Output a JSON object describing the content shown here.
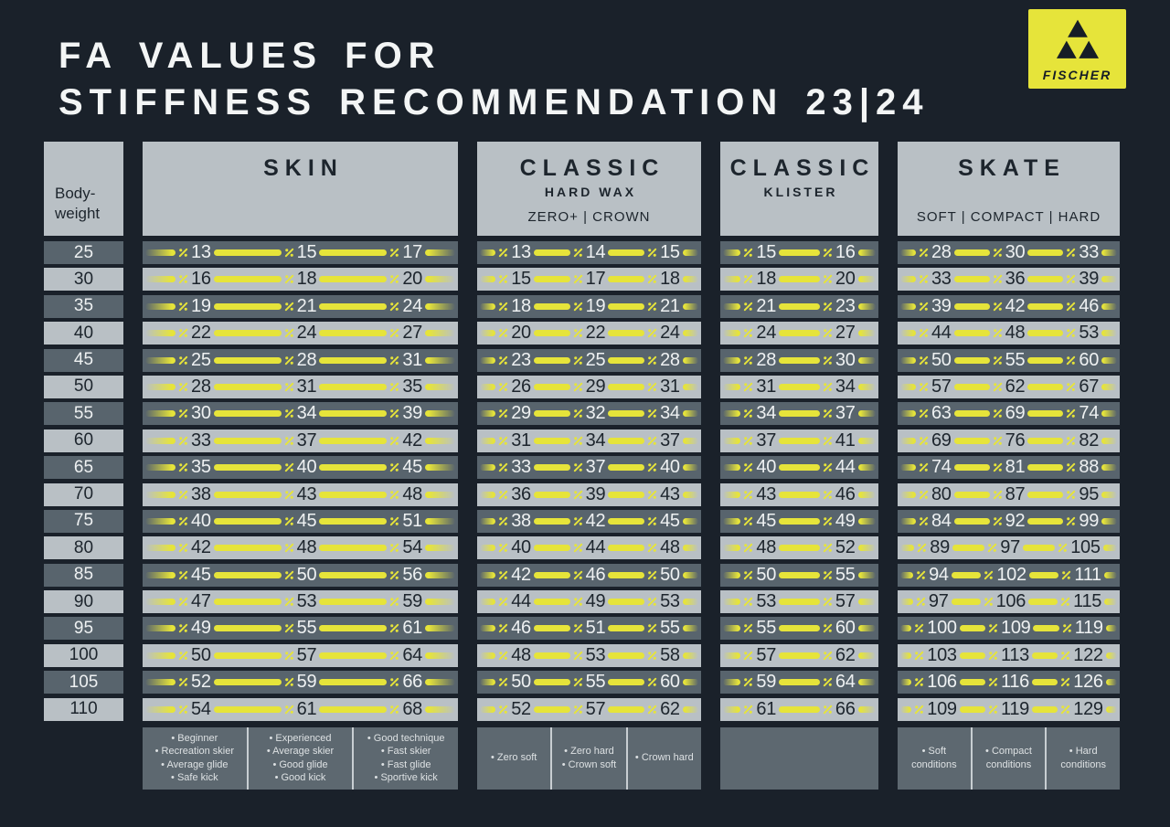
{
  "title": {
    "line1": "FA VALUES FOR",
    "line2": "STIFFNESS RECOMMENDATION 23|24"
  },
  "logo": {
    "brand": "FISCHER"
  },
  "table": {
    "bodyweight_header": [
      "Body-",
      "weight"
    ],
    "columns": [
      {
        "id": "skin",
        "title": "SKIN",
        "subtitle": "",
        "subtitle2": "",
        "footnotes": [
          [
            "Beginner",
            "Recreation skier",
            "Average glide",
            "Safe kick"
          ],
          [
            "Experienced",
            "Average skier",
            "Good glide",
            "Good kick"
          ],
          [
            "Good technique",
            "Fast skier",
            "Fast glide",
            "Sportive kick"
          ]
        ]
      },
      {
        "id": "classic-hard-wax",
        "title": "CLASSIC",
        "subtitle": "HARD WAX",
        "subtitle2": "ZERO+ | CROWN",
        "footnotes": [
          [
            "Zero soft"
          ],
          [
            "Zero hard",
            "Crown soft"
          ],
          [
            "Crown hard"
          ]
        ]
      },
      {
        "id": "classic-klister",
        "title": "CLASSIC",
        "subtitle": "KLISTER",
        "subtitle2": "",
        "footnotes": []
      },
      {
        "id": "skate",
        "title": "SKATE",
        "subtitle": "",
        "subtitle2": "SOFT | COMPACT | HARD",
        "footnotes": [
          [
            "Soft conditions"
          ],
          [
            "Compact conditions"
          ],
          [
            "Hard conditions"
          ]
        ]
      }
    ]
  },
  "chart_data": {
    "type": "table",
    "title": "FA VALUES FOR STIFFNESS RECOMMENDATION 23|24",
    "x_label": "Body-weight",
    "categories": [
      25,
      30,
      35,
      40,
      45,
      50,
      55,
      60,
      65,
      70,
      75,
      80,
      85,
      90,
      95,
      100,
      105,
      110
    ],
    "series": [
      {
        "name": "SKIN",
        "values": [
          [
            13,
            15,
            17
          ],
          [
            16,
            18,
            20
          ],
          [
            19,
            21,
            24
          ],
          [
            22,
            24,
            27
          ],
          [
            25,
            28,
            31
          ],
          [
            28,
            31,
            35
          ],
          [
            30,
            34,
            39
          ],
          [
            33,
            37,
            42
          ],
          [
            35,
            40,
            45
          ],
          [
            38,
            43,
            48
          ],
          [
            40,
            45,
            51
          ],
          [
            42,
            48,
            54
          ],
          [
            45,
            50,
            56
          ],
          [
            47,
            53,
            59
          ],
          [
            49,
            55,
            61
          ],
          [
            50,
            57,
            64
          ],
          [
            52,
            59,
            66
          ],
          [
            54,
            61,
            68
          ]
        ]
      },
      {
        "name": "CLASSIC HARD WAX (ZERO+ | CROWN)",
        "values": [
          [
            13,
            14,
            15
          ],
          [
            15,
            17,
            18
          ],
          [
            18,
            19,
            21
          ],
          [
            20,
            22,
            24
          ],
          [
            23,
            25,
            28
          ],
          [
            26,
            29,
            31
          ],
          [
            29,
            32,
            34
          ],
          [
            31,
            34,
            37
          ],
          [
            33,
            37,
            40
          ],
          [
            36,
            39,
            43
          ],
          [
            38,
            42,
            45
          ],
          [
            40,
            44,
            48
          ],
          [
            42,
            46,
            50
          ],
          [
            44,
            49,
            53
          ],
          [
            46,
            51,
            55
          ],
          [
            48,
            53,
            58
          ],
          [
            50,
            55,
            60
          ],
          [
            52,
            57,
            62
          ]
        ]
      },
      {
        "name": "CLASSIC KLISTER",
        "values": [
          [
            15,
            16
          ],
          [
            18,
            20
          ],
          [
            21,
            23
          ],
          [
            24,
            27
          ],
          [
            28,
            30
          ],
          [
            31,
            34
          ],
          [
            34,
            37
          ],
          [
            37,
            41
          ],
          [
            40,
            44
          ],
          [
            43,
            46
          ],
          [
            45,
            49
          ],
          [
            48,
            52
          ],
          [
            50,
            55
          ],
          [
            53,
            57
          ],
          [
            55,
            60
          ],
          [
            57,
            62
          ],
          [
            59,
            64
          ],
          [
            61,
            66
          ]
        ]
      },
      {
        "name": "SKATE (SOFT | COMPACT | HARD)",
        "values": [
          [
            28,
            30,
            33
          ],
          [
            33,
            36,
            39
          ],
          [
            39,
            42,
            46
          ],
          [
            44,
            48,
            53
          ],
          [
            50,
            55,
            60
          ],
          [
            57,
            62,
            67
          ],
          [
            63,
            69,
            74
          ],
          [
            69,
            76,
            82
          ],
          [
            74,
            81,
            88
          ],
          [
            80,
            87,
            95
          ],
          [
            84,
            92,
            99
          ],
          [
            89,
            97,
            105
          ],
          [
            94,
            102,
            111
          ],
          [
            97,
            106,
            115
          ],
          [
            100,
            109,
            119
          ],
          [
            103,
            113,
            122
          ],
          [
            106,
            116,
            126
          ],
          [
            109,
            119,
            129
          ]
        ]
      }
    ]
  },
  "colors": {
    "background": "#1a212a",
    "row-dark": "#58646d",
    "row-light": "#b9c0c5",
    "header-box": "#b9c0c5",
    "footer-box": "#5d6870",
    "yellow": "#e6e43a",
    "title-text": "#f3f5f5",
    "dark-text": "#1d252d",
    "light-text": "#eef1f2",
    "footer-text": "#dde1e3"
  }
}
